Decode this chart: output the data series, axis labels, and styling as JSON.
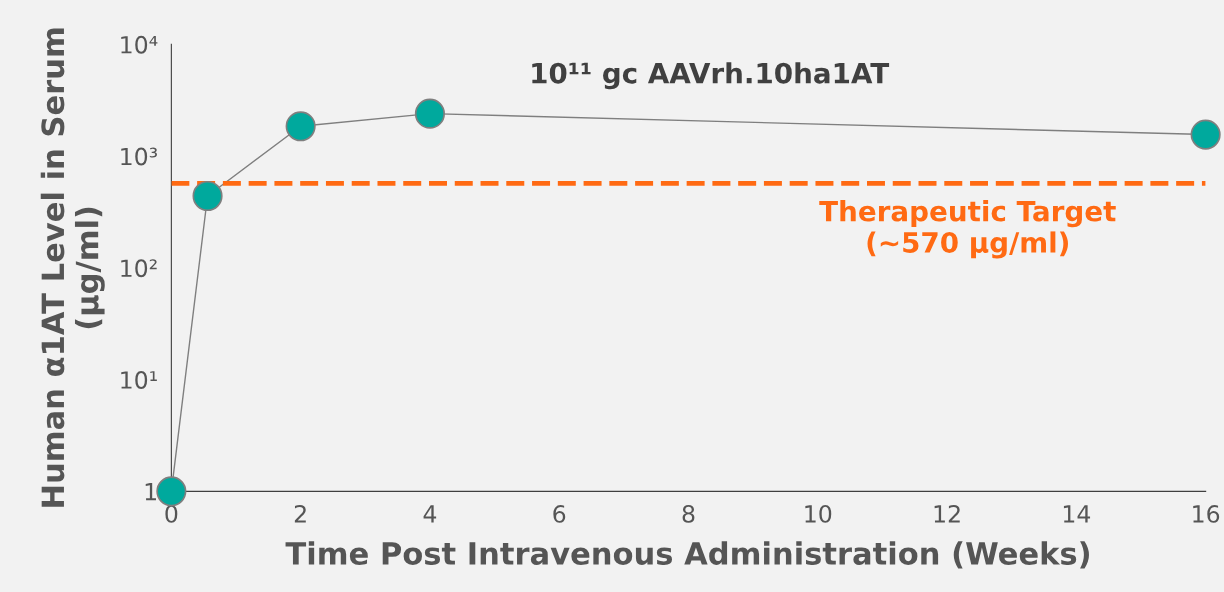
{
  "chart_data": {
    "type": "line",
    "xlabel": "Time Post Intravenous Administration (Weeks)",
    "ylabel": "Human α1AT Level in Serum\n(μg/ml)",
    "series": [
      {
        "color": "#00a99d",
        "x": [
          0,
          0.56,
          2,
          4,
          16
        ],
        "values": [
          1,
          440,
          1850,
          2400,
          1560
        ]
      }
    ],
    "marker": "circle",
    "line_style": "solid",
    "log": "y",
    "xlim": [
      0,
      16
    ],
    "xticks": [
      0,
      2,
      4,
      6,
      8,
      10,
      12,
      14,
      16
    ],
    "ylim": [
      1,
      10000
    ],
    "yticks": [
      1,
      {
        "value": 10,
        "label": "10¹"
      },
      {
        "value": 100,
        "label": "10²"
      },
      {
        "value": 1000,
        "label": "10³"
      },
      {
        "value": 10000,
        "label": "10⁴"
      }
    ],
    "ref_lines": [
      {
        "axis": "y",
        "value": 570,
        "label": "Therapeutic Target\n(~570 μg/ml)",
        "color": "#ff6a13",
        "line_style": "dashed"
      }
    ],
    "annotations": [
      "10¹¹ gc AAVrh.10ha1AT"
    ],
    "grid": false,
    "legend": false
  }
}
